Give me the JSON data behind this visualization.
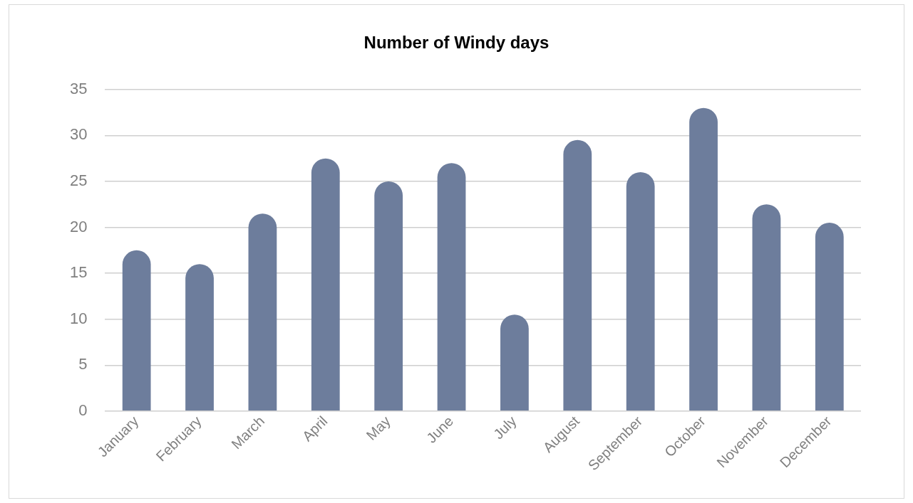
{
  "chart_data": {
    "type": "bar",
    "title": "Number of Windy days",
    "categories": [
      "January",
      "February",
      "March",
      "April",
      "May",
      "June",
      "July",
      "August",
      "September",
      "October",
      "November",
      "December"
    ],
    "values": [
      17.5,
      16,
      21.5,
      27.5,
      25,
      27,
      10.5,
      29.5,
      26,
      33,
      22.5,
      20.5
    ],
    "color": "#6d7d9c",
    "ylim": [
      0,
      35
    ],
    "yticks": [
      0,
      5,
      10,
      15,
      20,
      25,
      30,
      35
    ],
    "grid": "y",
    "legend": false
  }
}
